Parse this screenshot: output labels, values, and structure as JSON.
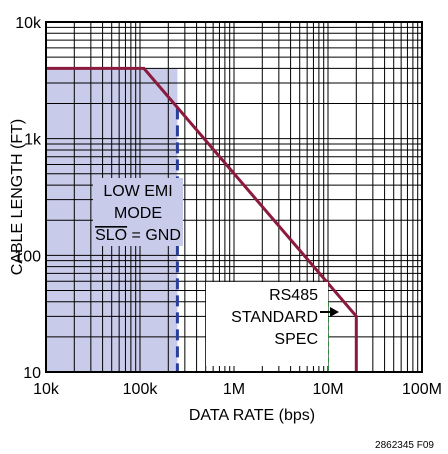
{
  "chart_data": {
    "type": "line",
    "title": "",
    "xlabel": "DATA RATE (bps)",
    "ylabel": "CABLE LENGTH (FT)",
    "x_scale": "log",
    "y_scale": "log",
    "xlim": [
      10000,
      100000000
    ],
    "ylim": [
      10,
      10000
    ],
    "grid": true,
    "x_ticks": [
      {
        "value": 10000,
        "label": "10k"
      },
      {
        "value": 100000,
        "label": "100k"
      },
      {
        "value": 1000000,
        "label": "1M"
      },
      {
        "value": 10000000,
        "label": "10M"
      },
      {
        "value": 100000000,
        "label": "100M"
      }
    ],
    "y_ticks": [
      {
        "value": 10,
        "label": "10"
      },
      {
        "value": 100,
        "label": "100"
      },
      {
        "value": 1000,
        "label": "1k"
      },
      {
        "value": 10000,
        "label": "10k"
      }
    ],
    "series": [
      {
        "name": "",
        "color": "#8b1a3c",
        "points": [
          {
            "x": 10000,
            "y": 4000
          },
          {
            "x": 110000,
            "y": 4000
          },
          {
            "x": 20000000,
            "y": 30
          },
          {
            "x": 20000000,
            "y": 10
          }
        ]
      }
    ],
    "regions": [
      {
        "name": "low-emi-region",
        "fill": "#c9cbeb",
        "x_end": 250000,
        "boundary_color": "#2a3f9a"
      }
    ],
    "markers": [
      {
        "name": "rs485-marker",
        "x": 10000000,
        "color": "#2e8a3a"
      }
    ],
    "annotations": {
      "low_emi": {
        "line1": "LOW EMI",
        "line2": "MODE",
        "line3_overline": "SLO",
        "line3_rest": " = GND"
      },
      "rs485": {
        "line1": "RS485",
        "line2": "STANDARD",
        "line3": "SPEC"
      }
    },
    "figure_id": "2862345 F09"
  }
}
